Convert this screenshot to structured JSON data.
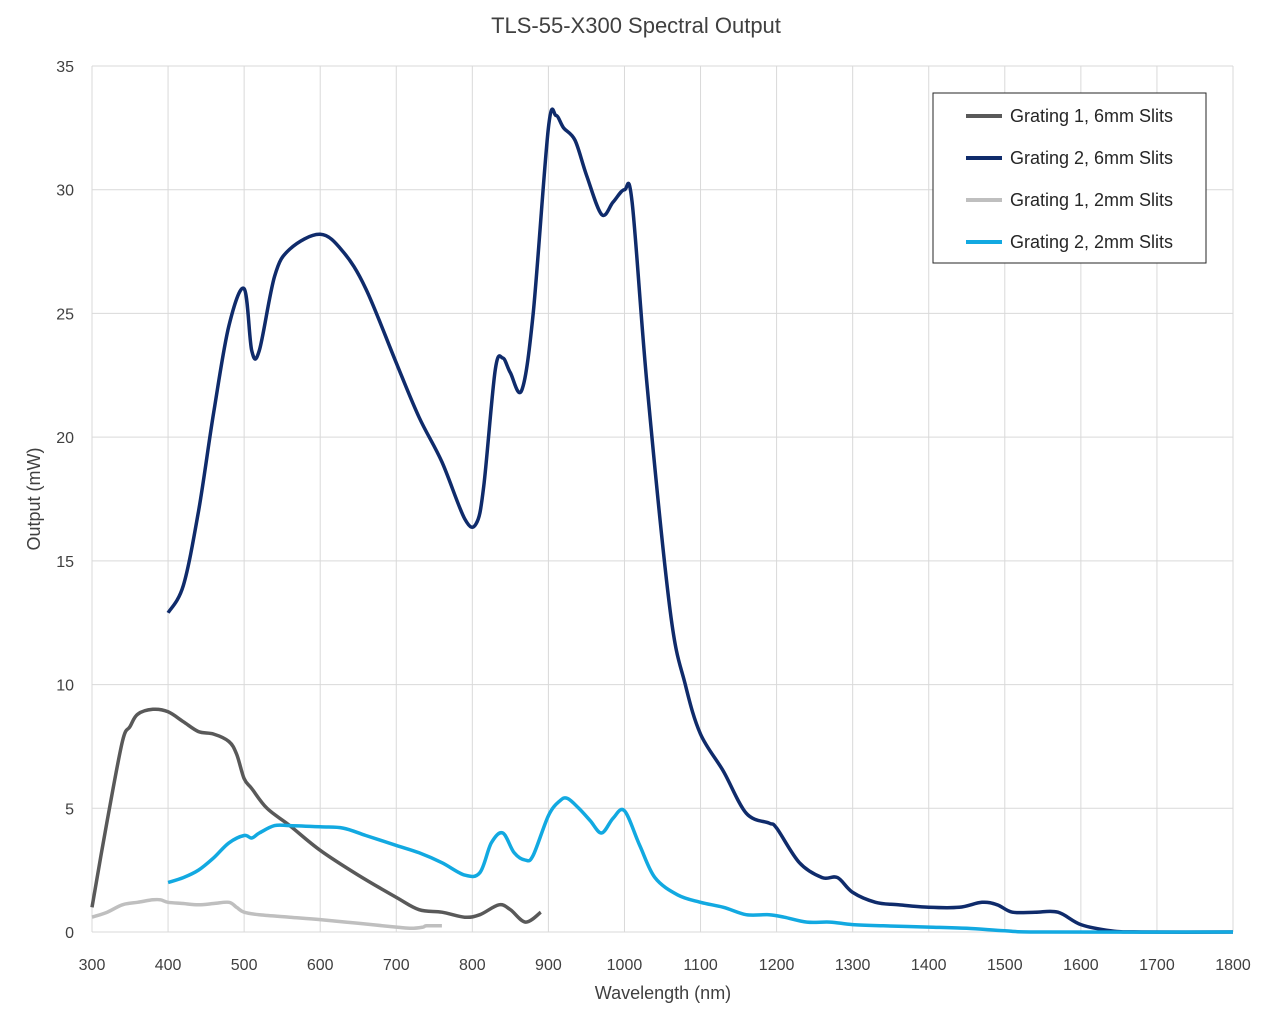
{
  "chart_data": {
    "type": "line",
    "title": "TLS-55-X300 Spectral Output",
    "xlabel": "Wavelength (nm)",
    "ylabel": "Output (mW)",
    "xlim": [
      300,
      1800
    ],
    "ylim": [
      0,
      35
    ],
    "xticks": [
      300,
      400,
      500,
      600,
      700,
      800,
      900,
      1000,
      1100,
      1200,
      1300,
      1400,
      1500,
      1600,
      1700,
      1800
    ],
    "yticks": [
      0,
      5,
      10,
      15,
      20,
      25,
      30,
      35
    ],
    "grid": true,
    "legend_position": "top-right",
    "series": [
      {
        "name": "Grating 1, 6mm Slits",
        "color": "#595959",
        "x": [
          300,
          320,
          340,
          350,
          360,
          380,
          400,
          420,
          440,
          460,
          480,
          490,
          500,
          510,
          530,
          560,
          600,
          650,
          700,
          730,
          760,
          790,
          810,
          835,
          850,
          870,
          890
        ],
        "y": [
          1.0,
          4.5,
          7.7,
          8.3,
          8.8,
          9.0,
          8.9,
          8.5,
          8.1,
          8.0,
          7.7,
          7.2,
          6.2,
          5.8,
          5.0,
          4.3,
          3.3,
          2.3,
          1.4,
          0.9,
          0.8,
          0.6,
          0.7,
          1.1,
          0.9,
          0.4,
          0.8
        ]
      },
      {
        "name": "Grating 2, 6mm Slits",
        "color": "#0f2b6b",
        "x": [
          400,
          420,
          440,
          460,
          480,
          500,
          510,
          520,
          540,
          560,
          600,
          630,
          660,
          700,
          730,
          760,
          790,
          805,
          815,
          830,
          840,
          850,
          865,
          880,
          900,
          910,
          920,
          935,
          950,
          970,
          985,
          1000,
          1010,
          1030,
          1060,
          1080,
          1100,
          1130,
          1160,
          1190,
          1200,
          1230,
          1260,
          1280,
          1300,
          1330,
          1360,
          1400,
          1440,
          1470,
          1490,
          1510,
          1540,
          1570,
          1600,
          1640,
          1680,
          1800
        ],
        "y": [
          12.9,
          14.0,
          17.0,
          21.0,
          24.5,
          26.0,
          23.5,
          23.5,
          26.5,
          27.6,
          28.2,
          27.5,
          26.0,
          23.0,
          20.8,
          19.0,
          16.7,
          16.5,
          18.0,
          22.7,
          23.2,
          22.6,
          21.9,
          25.0,
          32.5,
          33.0,
          32.5,
          32.0,
          30.6,
          29.0,
          29.5,
          30.0,
          29.5,
          22.0,
          13.0,
          10.0,
          8.0,
          6.5,
          4.8,
          4.4,
          4.2,
          2.8,
          2.2,
          2.2,
          1.6,
          1.2,
          1.1,
          1.0,
          1.0,
          1.2,
          1.1,
          0.8,
          0.8,
          0.8,
          0.3,
          0.05,
          0.0,
          0.0
        ]
      },
      {
        "name": "Grating 1, 2mm Slits",
        "color": "#bfbfbf",
        "x": [
          300,
          320,
          340,
          360,
          380,
          390,
          400,
          420,
          440,
          460,
          480,
          490,
          500,
          520,
          560,
          600,
          650,
          700,
          720,
          735,
          740,
          760
        ],
        "y": [
          0.6,
          0.8,
          1.1,
          1.2,
          1.3,
          1.3,
          1.2,
          1.15,
          1.1,
          1.15,
          1.2,
          1.0,
          0.8,
          0.7,
          0.6,
          0.5,
          0.35,
          0.2,
          0.15,
          0.2,
          0.25,
          0.25
        ]
      },
      {
        "name": "Grating 2, 2mm Slits",
        "color": "#12a9e1",
        "x": [
          400,
          420,
          440,
          460,
          480,
          500,
          510,
          520,
          540,
          560,
          600,
          630,
          660,
          700,
          730,
          760,
          790,
          810,
          825,
          840,
          855,
          870,
          880,
          900,
          915,
          925,
          940,
          955,
          970,
          985,
          1000,
          1020,
          1040,
          1070,
          1100,
          1130,
          1160,
          1190,
          1210,
          1240,
          1270,
          1300,
          1340,
          1400,
          1450,
          1500,
          1550,
          1800
        ],
        "y": [
          2.0,
          2.2,
          2.5,
          3.0,
          3.6,
          3.9,
          3.8,
          4.0,
          4.3,
          4.3,
          4.25,
          4.2,
          3.9,
          3.5,
          3.2,
          2.8,
          2.3,
          2.4,
          3.6,
          4.0,
          3.2,
          2.9,
          3.1,
          4.7,
          5.3,
          5.4,
          5.0,
          4.5,
          4.0,
          4.6,
          4.9,
          3.5,
          2.2,
          1.5,
          1.2,
          1.0,
          0.7,
          0.7,
          0.6,
          0.4,
          0.4,
          0.3,
          0.25,
          0.2,
          0.15,
          0.05,
          0.0,
          0.0
        ]
      }
    ]
  }
}
